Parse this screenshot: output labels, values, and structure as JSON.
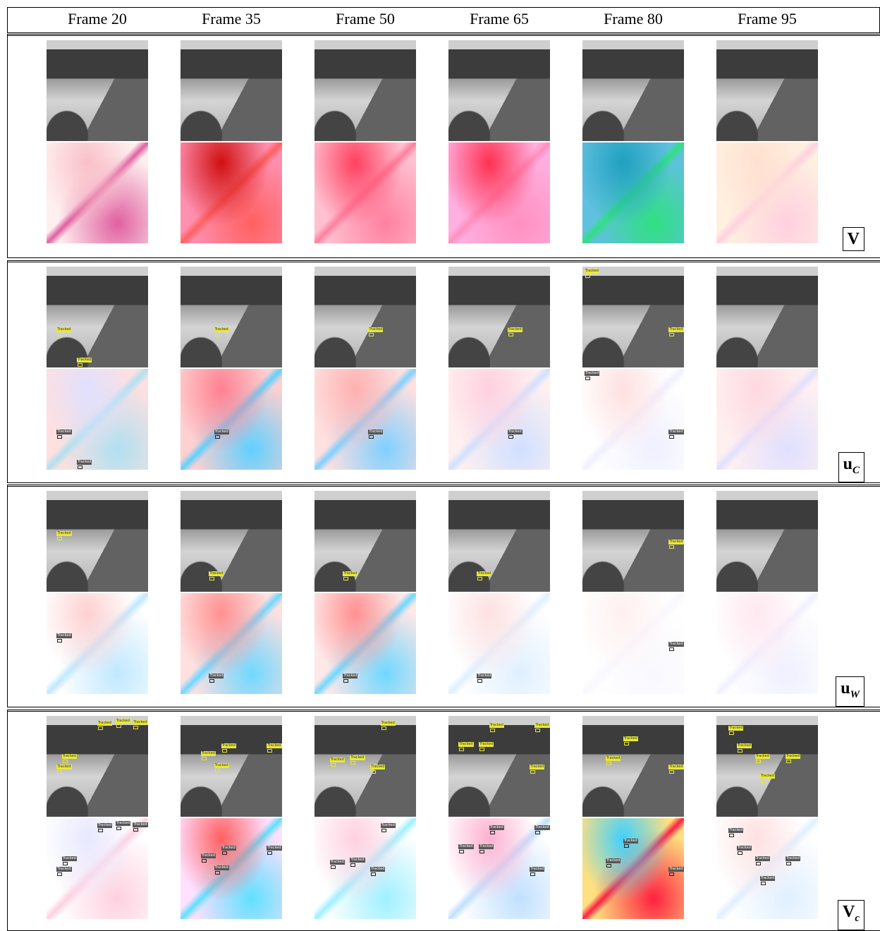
{
  "header": {
    "frames": [
      "Frame 20",
      "Frame 35",
      "Frame 50",
      "Frame 65",
      "Frame 80",
      "Frame 95"
    ]
  },
  "rows": [
    {
      "label": {
        "main": "V"
      }
    },
    {
      "label": {
        "main": "u",
        "sub": "C"
      },
      "frames": [
        {
          "tracked": [
            "Tracked",
            "Tracked"
          ]
        },
        {
          "tracked": [
            "Tracked"
          ]
        },
        {
          "tracked": [
            "Tracked"
          ]
        },
        {
          "tracked": [
            "Tracked"
          ]
        },
        {
          "tracked": [
            "Tracked",
            "Tracked"
          ]
        },
        {
          "tracked": []
        }
      ]
    },
    {
      "label": {
        "main": "u",
        "sub": "W"
      },
      "frames": [
        {
          "tracked": [
            "Tracked"
          ]
        },
        {
          "tracked": [
            "Tracked"
          ]
        },
        {
          "tracked": [
            "Tracked"
          ]
        },
        {
          "tracked": [
            "Tracked"
          ]
        },
        {
          "tracked": [
            "Tracked"
          ]
        },
        {
          "tracked": []
        }
      ]
    },
    {
      "label": {
        "main": "V",
        "sub": "c"
      },
      "frames": [
        {
          "tracked": [
            "Tracked",
            "Tracked",
            "Tracked",
            "Tracked",
            "Tracked"
          ]
        },
        {
          "tracked": [
            "Tracked",
            "Tracked",
            "Tracked",
            "Tracked"
          ]
        },
        {
          "tracked": [
            "Tracked",
            "Tracked",
            "Tracked",
            "Tracked"
          ]
        },
        {
          "tracked": [
            "Tracked",
            "Tracked",
            "Tracked",
            "Tracked",
            "Tracked"
          ]
        },
        {
          "tracked": [
            "Tracked",
            "Tracked",
            "Tracked"
          ]
        },
        {
          "tracked": [
            "Tracked",
            "Tracked",
            "Tracked",
            "Tracked",
            "Tracked"
          ]
        }
      ]
    }
  ]
}
